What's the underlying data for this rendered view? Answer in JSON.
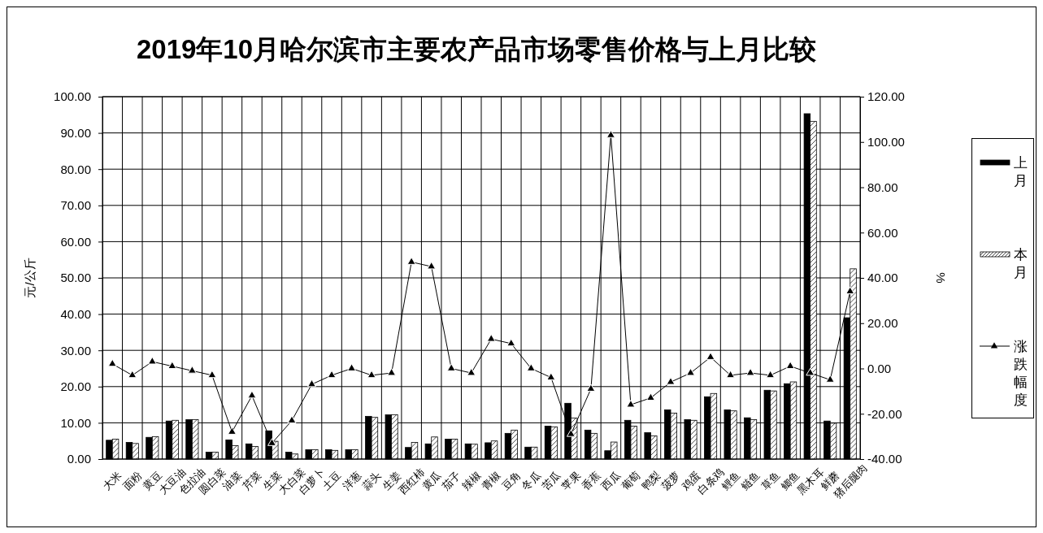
{
  "chart_data": {
    "type": "bar",
    "title": "2019年10月哈尔滨市主要农产品市场零售价格与上月比较",
    "ylabel": "元/公斤",
    "y2label": "%",
    "categories": [
      "大米",
      "面粉",
      "黄豆",
      "大豆油",
      "色拉油",
      "圆白菜",
      "油菜",
      "芹菜",
      "生菜",
      "大白菜",
      "白萝卜",
      "土豆",
      "洋葱",
      "蒜头",
      "生姜",
      "西红柿",
      "黄瓜",
      "茄子",
      "辣椒",
      "青椒",
      "豆角",
      "冬瓜",
      "苦瓜",
      "苹果",
      "香蕉",
      "西瓜",
      "葡萄",
      "鸭梨",
      "菠萝",
      "鸡蛋",
      "白条鸡",
      "鲤鱼",
      "鲢鱼",
      "草鱼",
      "鲫鱼",
      "黑木耳",
      "鲜蘑",
      "猪后腿肉"
    ],
    "series": [
      {
        "name": "上月",
        "color": "#000000",
        "values": [
          5.2,
          4.6,
          6.0,
          10.5,
          10.9,
          1.9,
          5.3,
          4.2,
          7.8,
          1.9,
          2.6,
          2.6,
          2.6,
          11.8,
          12.2,
          3.2,
          4.2,
          5.5,
          4.2,
          4.5,
          7.1,
          3.3,
          9.1,
          15.4,
          8.0,
          2.3,
          10.7,
          7.3,
          13.6,
          10.9,
          17.2,
          13.6,
          11.4,
          19.0,
          20.8,
          95.3,
          10.5,
          39.0
        ]
      },
      {
        "name": "本月",
        "color": "#ffffff",
        "values": [
          5.5,
          4.3,
          6.2,
          10.7,
          10.9,
          1.9,
          3.7,
          3.5,
          4.9,
          1.4,
          2.6,
          2.4,
          2.6,
          11.5,
          12.2,
          4.6,
          6.1,
          5.5,
          4.1,
          5.0,
          8.0,
          3.3,
          8.9,
          11.3,
          7.1,
          4.7,
          9.1,
          6.4,
          12.7,
          10.7,
          18.1,
          13.3,
          10.9,
          18.8,
          21.3,
          93.2,
          9.9,
          52.5
        ]
      },
      {
        "name": "涨跌幅度",
        "type": "line",
        "axis": "y2",
        "color": "#000000",
        "values": [
          2,
          -3,
          3,
          1,
          -1,
          -3,
          -28,
          -12,
          -33,
          -23,
          -7,
          -3,
          0,
          -3,
          -2,
          47,
          45,
          0,
          -2,
          13,
          11,
          0,
          -4,
          -29,
          -9,
          103,
          -16,
          -13,
          -6,
          -2,
          5,
          -3,
          -2,
          -3,
          1,
          -2,
          -5,
          34
        ]
      }
    ],
    "ylim": [
      0,
      100
    ],
    "yticks": [
      {
        "value": 0,
        "label": "0.00"
      },
      {
        "value": 10,
        "label": "10.00"
      },
      {
        "value": 20,
        "label": "20.00"
      },
      {
        "value": 30,
        "label": "30.00"
      },
      {
        "value": 40,
        "label": "40.00"
      },
      {
        "value": 50,
        "label": "50.00"
      },
      {
        "value": 60,
        "label": "60.00"
      },
      {
        "value": 70,
        "label": "70.00"
      },
      {
        "value": 80,
        "label": "80.00"
      },
      {
        "value": 90,
        "label": "90.00"
      },
      {
        "value": 100,
        "label": "100.00"
      }
    ],
    "y2lim": [
      -40,
      120
    ],
    "y2ticks": [
      {
        "value": -40,
        "label": "-40.00"
      },
      {
        "value": -20,
        "label": "-20.00"
      },
      {
        "value": 0,
        "label": "0.00"
      },
      {
        "value": 20,
        "label": "20.00"
      },
      {
        "value": 40,
        "label": "40.00"
      },
      {
        "value": 60,
        "label": "60.00"
      },
      {
        "value": 80,
        "label": "80.00"
      },
      {
        "value": 100,
        "label": "100.00"
      },
      {
        "value": 120,
        "label": "120.00"
      }
    ],
    "grid": true,
    "legend": "right",
    "marker": "triangle"
  }
}
